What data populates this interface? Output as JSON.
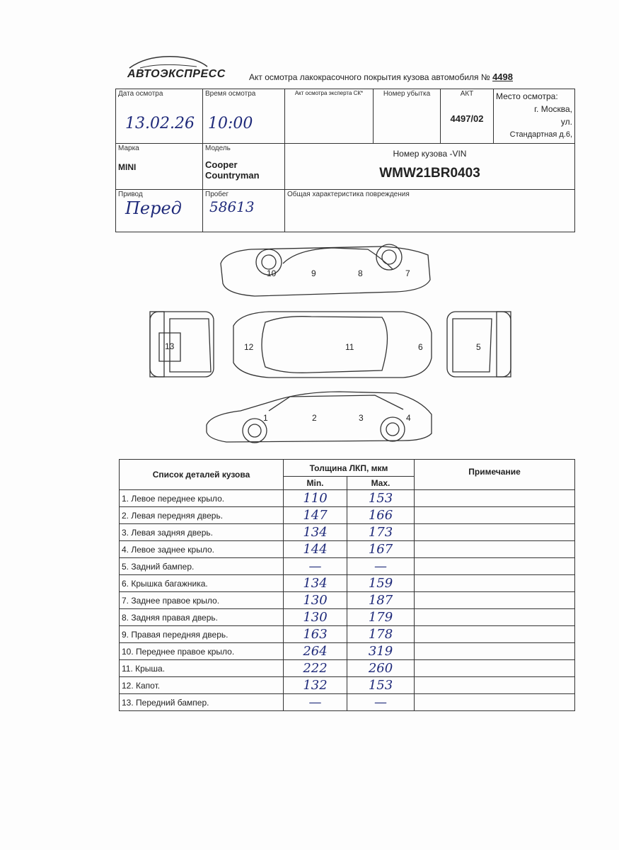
{
  "logo": "АВТОЭКСПРЕСС",
  "title": "Акт осмотра лакокрасочного покрытия кузова автомобиля №",
  "act_number": "4498",
  "header": {
    "date_label": "Дата осмотра",
    "date_value": "13.02.26",
    "time_label": "Время осмотра",
    "time_value": "10:00",
    "expert_label": "Акт осмотра эксперта СК*",
    "loss_label": "Номер убытка",
    "akt_label": "АКТ",
    "akt_value": "4497/02",
    "place_label": "Место осмотра:",
    "place_line1": "г. Москва,",
    "place_line2": "ул.",
    "place_line3": "Стандартная д.6,",
    "brand_label": "Марка",
    "brand_value": "MINI",
    "model_label": "Модель",
    "model_line1": "Cooper",
    "model_line2": "Countryman",
    "vin_label": "Номер кузова -VIN",
    "vin_value": "WMW21BR0403",
    "drive_label": "Привод",
    "drive_value": "Перед",
    "mileage_label": "Пробег",
    "mileage_value": "58613",
    "damage_label": "Общая характеристика повреждения"
  },
  "diagram_numbers": [
    "1",
    "2",
    "3",
    "4",
    "5",
    "6",
    "7",
    "8",
    "9",
    "10",
    "11",
    "12",
    "13"
  ],
  "table": {
    "col_parts": "Список деталей кузова",
    "col_thickness": "Толщина ЛКП, мкм",
    "col_min": "Min.",
    "col_max": "Max.",
    "col_note": "Примечание",
    "rows": [
      {
        "part": "1. Левое переднее крыло.",
        "min": "110",
        "max": "153"
      },
      {
        "part": "2. Левая передняя дверь.",
        "min": "147",
        "max": "166"
      },
      {
        "part": "3. Левая задняя дверь.",
        "min": "134",
        "max": "173"
      },
      {
        "part": "4. Левое заднее крыло.",
        "min": "144",
        "max": "167"
      },
      {
        "part": "5. Задний бампер.",
        "min": "—",
        "max": "—"
      },
      {
        "part": "6. Крышка багажника.",
        "min": "134",
        "max": "159"
      },
      {
        "part": "7. Заднее правое крыло.",
        "min": "130",
        "max": "187"
      },
      {
        "part": "8. Задняя правая дверь.",
        "min": "130",
        "max": "179"
      },
      {
        "part": "9. Правая передняя дверь.",
        "min": "163",
        "max": "178"
      },
      {
        "part": "10. Переднее правое крыло.",
        "min": "264",
        "max": "319"
      },
      {
        "part": "11. Крыша.",
        "min": "222",
        "max": "260"
      },
      {
        "part": "12. Капот.",
        "min": "132",
        "max": "153"
      },
      {
        "part": "13. Передний бампер.",
        "min": "—",
        "max": "—"
      }
    ]
  }
}
